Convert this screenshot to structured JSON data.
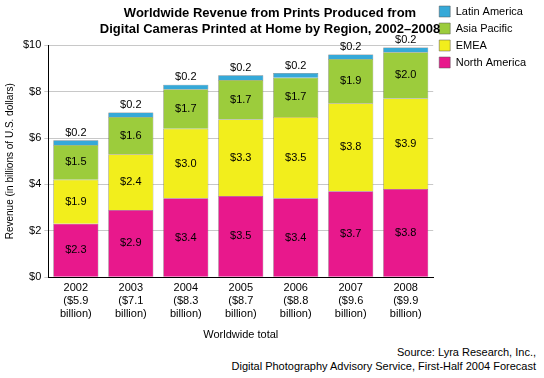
{
  "chart_data": {
    "type": "bar",
    "title": "Worldwide Revenue from Prints Produced from\nDigital Cameras Printed at Home by Region, 2002–2008",
    "x_label": "Worldwide total",
    "y_label": "Revenue (in billions of U.S. dollars)",
    "annotations": [
      "Source: Lyra Research, Inc.,",
      "Digital Photography Advisory Service, First-Half 2004 Forecast"
    ],
    "categories": [
      "2002\n($5.9\nbillion)",
      "2003\n($7.1\nbillion)",
      "2004\n($8.3\nbillion)",
      "2005\n($8.7\nbillion)",
      "2006\n($8.8\nbillion)",
      "2007\n($9.6\nbillion)",
      "2008\n($9.9\nbillion)"
    ],
    "series": [
      {
        "name": "North America",
        "color": "#e8188c",
        "values": [
          2.3,
          2.9,
          3.4,
          3.5,
          3.4,
          3.7,
          3.8
        ],
        "value_labels": [
          "$2.3",
          "$2.9",
          "$3.4",
          "$3.5",
          "$3.4",
          "$3.7",
          "$3.8"
        ]
      },
      {
        "name": "EMEA",
        "color": "#f2ee1c",
        "values": [
          1.9,
          2.4,
          3.0,
          3.3,
          3.5,
          3.8,
          3.9
        ],
        "value_labels": [
          "$1.9",
          "$2.4",
          "$3.0",
          "$3.3",
          "$3.5",
          "$3.8",
          "$3.9"
        ]
      },
      {
        "name": "Asia Pacific",
        "color": "#9ccc3c",
        "values": [
          1.5,
          1.6,
          1.7,
          1.7,
          1.7,
          1.9,
          2.0
        ],
        "value_labels": [
          "$1.5",
          "$1.6",
          "$1.7",
          "$1.7",
          "$1.7",
          "$1.9",
          "$2.0"
        ]
      },
      {
        "name": "Latin America",
        "color": "#36a9d8",
        "values": [
          0.2,
          0.2,
          0.2,
          0.2,
          0.2,
          0.2,
          0.2
        ],
        "value_labels": [
          "$0.2",
          "$0.2",
          "$0.2",
          "$0.2",
          "$0.2",
          "$0.2",
          "$0.2"
        ]
      }
    ],
    "ylim": [
      0,
      10
    ],
    "yticks": [
      {
        "value": 0,
        "label": "$0"
      },
      {
        "value": 2,
        "label": "$2"
      },
      {
        "value": 4,
        "label": "$4"
      },
      {
        "value": 6,
        "label": "$6"
      },
      {
        "value": 8,
        "label": "$8"
      },
      {
        "value": 10,
        "label": "$10"
      }
    ],
    "stacked": true,
    "data_labels": true,
    "grid": true,
    "legend": "top-right"
  }
}
